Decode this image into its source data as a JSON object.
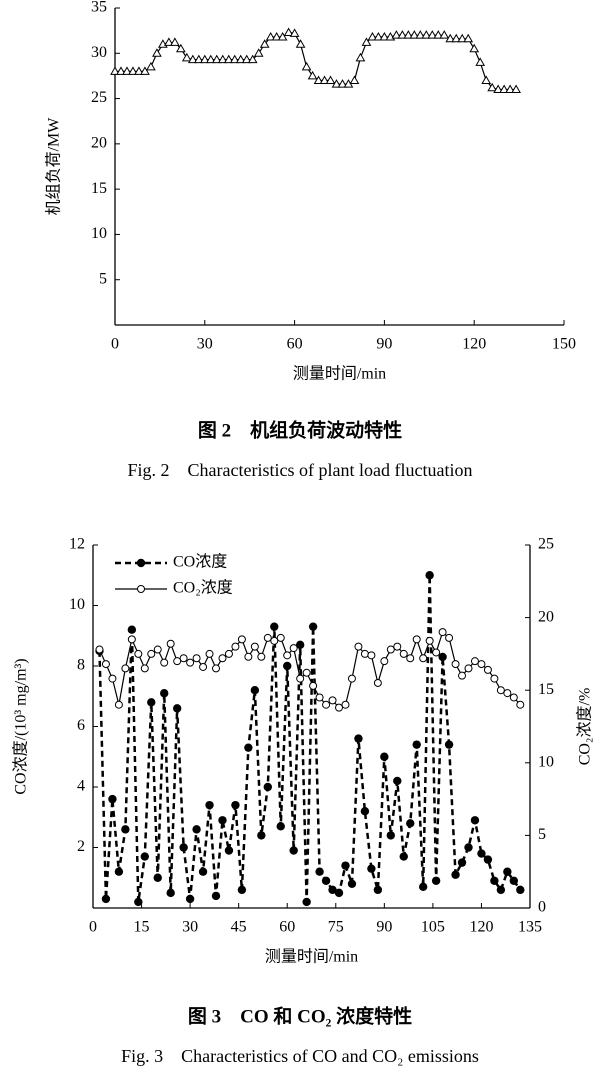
{
  "chart_data": [
    {
      "type": "line",
      "x_label": "测量时间/min",
      "y_label": "机组负荷/MW",
      "caption": "图 2　机组负荷波动特性",
      "caption_en": "Fig. 2　Characteristics of plant load fluctuation",
      "xlim": [
        0,
        150
      ],
      "xticks": [
        0,
        30,
        60,
        90,
        120,
        150
      ],
      "ylim": [
        0,
        35
      ],
      "yticks": [
        5,
        10,
        15,
        20,
        25,
        30,
        35
      ],
      "x": [
        0,
        2,
        4,
        6,
        8,
        10,
        12,
        14,
        16,
        18,
        20,
        22,
        24,
        26,
        28,
        30,
        32,
        34,
        36,
        38,
        40,
        42,
        44,
        46,
        48,
        50,
        52,
        54,
        56,
        58,
        60,
        62,
        64,
        66,
        68,
        70,
        72,
        74,
        76,
        78,
        80,
        82,
        84,
        86,
        88,
        90,
        92,
        94,
        96,
        98,
        100,
        102,
        104,
        106,
        108,
        110,
        112,
        114,
        116,
        118,
        120,
        122,
        124,
        126,
        128,
        130,
        132,
        134
      ],
      "series": [
        {
          "name": null,
          "color": "#000000",
          "marker": "triangle",
          "line_style": "solid",
          "values": [
            28,
            28,
            28,
            28,
            28,
            28,
            28.5,
            30,
            31,
            31.2,
            31.2,
            30.5,
            29.5,
            29.3,
            29.3,
            29.3,
            29.3,
            29.3,
            29.3,
            29.3,
            29.3,
            29.3,
            29.3,
            29.3,
            30,
            31,
            31.8,
            31.8,
            31.8,
            32.3,
            32.2,
            31,
            28.5,
            27.5,
            27,
            27,
            27,
            26.6,
            26.6,
            26.6,
            27,
            29.5,
            31.2,
            31.8,
            31.8,
            31.8,
            31.8,
            32,
            32,
            32,
            32,
            32,
            32,
            32,
            32,
            32,
            31.6,
            31.6,
            31.6,
            31.6,
            30.5,
            29,
            27,
            26.2,
            26,
            26,
            26,
            26
          ]
        }
      ]
    },
    {
      "type": "line",
      "x_label": "测量时间/min",
      "y_label": "CO浓度/(10³ mg/m³)",
      "y2_label": "CO₂浓度/%",
      "caption": "图 3　CO 和 CO₂ 浓度特性",
      "caption_en": "Fig. 3　Characteristics of CO and CO₂ emissions",
      "xlim": [
        0,
        135
      ],
      "xticks": [
        0,
        15,
        30,
        45,
        60,
        75,
        90,
        105,
        120,
        135
      ],
      "ylim": [
        0,
        12
      ],
      "yticks": [
        2,
        4,
        6,
        8,
        10,
        12
      ],
      "y2lim": [
        0,
        25
      ],
      "y2ticks": [
        0,
        5,
        10,
        15,
        20,
        25
      ],
      "legend": "top-left",
      "x": [
        2,
        4,
        6,
        8,
        10,
        12,
        14,
        16,
        18,
        20,
        22,
        24,
        26,
        28,
        30,
        32,
        34,
        36,
        38,
        40,
        42,
        44,
        46,
        48,
        50,
        52,
        54,
        56,
        58,
        60,
        62,
        64,
        66,
        68,
        70,
        72,
        74,
        76,
        78,
        80,
        82,
        84,
        86,
        88,
        90,
        92,
        94,
        96,
        98,
        100,
        102,
        104,
        106,
        108,
        110,
        112,
        114,
        116,
        118,
        120,
        122,
        124,
        126,
        128,
        130,
        132
      ],
      "series": [
        {
          "name": "CO浓度",
          "color": "#000000",
          "marker": "circle-filled",
          "line_style": "dashed",
          "values": [
            8.5,
            0.3,
            3.6,
            1.2,
            2.6,
            9.2,
            0.2,
            1.7,
            6.8,
            1.0,
            7.1,
            0.5,
            6.6,
            2.0,
            0.3,
            2.6,
            1.2,
            3.4,
            0.4,
            2.9,
            1.9,
            3.4,
            0.6,
            5.3,
            7.2,
            2.4,
            4.0,
            9.3,
            2.7,
            8.0,
            1.9,
            8.7,
            0.2,
            9.3,
            1.2,
            0.9,
            0.6,
            0.5,
            1.4,
            0.8,
            5.6,
            3.2,
            1.3,
            0.6,
            5.0,
            2.4,
            4.2,
            1.7,
            2.8,
            5.4,
            0.7,
            11.0,
            0.9,
            8.3,
            5.4,
            1.1,
            1.5,
            2.0,
            2.9,
            1.8,
            1.6,
            0.9,
            0.6,
            1.2,
            0.9,
            0.6
          ]
        },
        {
          "name": "CO₂浓度",
          "color": "#000000",
          "marker": "circle-open",
          "line_style": "solid",
          "axis": "y2",
          "values": [
            17.8,
            16.8,
            15.8,
            14.0,
            16.5,
            18.5,
            17.5,
            16.5,
            17.5,
            17.8,
            16.9,
            18.2,
            17.0,
            17.2,
            16.9,
            17.2,
            16.6,
            17.5,
            16.5,
            17.2,
            17.5,
            18.0,
            18.5,
            17.3,
            18.0,
            17.3,
            18.6,
            18.4,
            18.6,
            17.4,
            17.9,
            15.8,
            16.2,
            15.3,
            14.5,
            14.0,
            14.3,
            13.8,
            14.0,
            15.8,
            18.0,
            17.5,
            17.4,
            15.5,
            17.0,
            17.8,
            18.0,
            17.5,
            17.2,
            18.5,
            17.2,
            18.4,
            17.6,
            19.0,
            18.6,
            16.8,
            16.0,
            16.5,
            17.0,
            16.8,
            16.4,
            15.8,
            15.0,
            14.8,
            14.5,
            14.0
          ]
        }
      ]
    }
  ]
}
